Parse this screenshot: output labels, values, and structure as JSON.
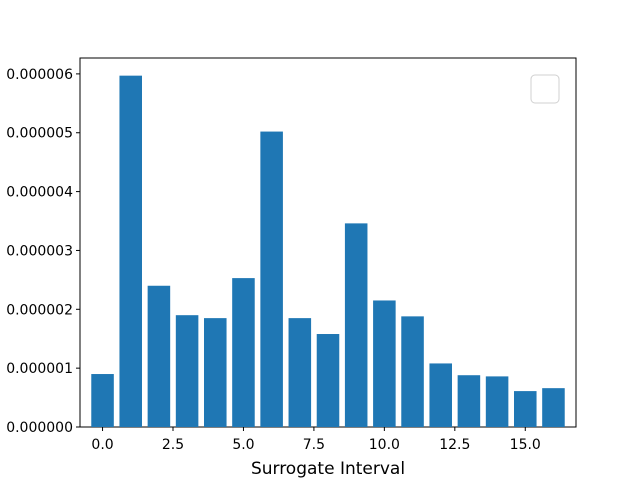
{
  "chart_data": {
    "type": "bar",
    "title": "",
    "xlabel": "Surrogate Interval",
    "ylabel": "",
    "x": [
      0,
      1,
      2,
      3,
      4,
      5,
      6,
      7,
      8,
      9,
      10,
      11,
      12,
      13,
      14,
      15,
      16
    ],
    "values": [
      9e-07,
      5.97e-06,
      2.4e-06,
      1.9e-06,
      1.85e-06,
      2.53e-06,
      5.02e-06,
      1.85e-06,
      1.58e-06,
      3.46e-06,
      2.15e-06,
      1.88e-06,
      1.08e-06,
      8.8e-07,
      8.6e-07,
      6.1e-07,
      6.6e-07
    ],
    "xlim": [
      -0.8,
      16.8
    ],
    "ylim": [
      0,
      6.27e-06
    ],
    "xticks": [
      0,
      2.5,
      5,
      7.5,
      10,
      12.5,
      15
    ],
    "xtick_labels": [
      "0.0",
      "2.5",
      "5.0",
      "7.5",
      "10.0",
      "12.5",
      "15.0"
    ],
    "yticks": [
      0,
      1e-06,
      2e-06,
      3e-06,
      4e-06,
      5e-06,
      6e-06
    ],
    "ytick_labels": [
      "0.000000",
      "0.000001",
      "0.000002",
      "0.000003",
      "0.000004",
      "0.000005",
      "0.000006"
    ],
    "bar_color": "#1f77b4",
    "grid": false,
    "legend": "top-right, empty"
  }
}
